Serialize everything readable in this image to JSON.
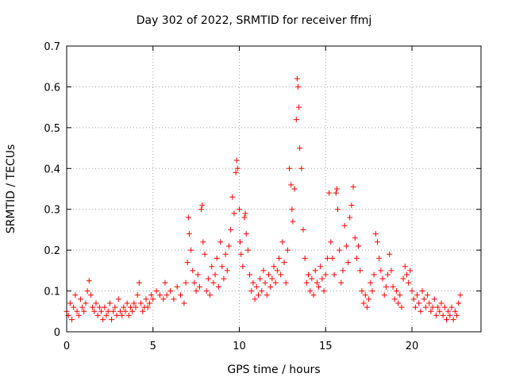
{
  "chart_data": {
    "type": "scatter",
    "title": "Day 302 of 2022, SRMTID for receiver ffmj",
    "xlabel": "GPS time / hours",
    "ylabel": "SRMTID / TECUs",
    "xlim": [
      0,
      24
    ],
    "ylim": [
      0,
      0.7
    ],
    "xticks": [
      0,
      5,
      10,
      15,
      20
    ],
    "yticks": [
      0,
      0.1,
      0.2,
      0.3,
      0.4,
      0.5,
      0.6,
      0.7
    ],
    "grid": true,
    "marker": "+",
    "color": "#ff0000",
    "series": [
      {
        "name": "SRMTID",
        "points": [
          [
            0.0,
            0.05
          ],
          [
            0.1,
            0.04
          ],
          [
            0.2,
            0.07
          ],
          [
            0.3,
            0.03
          ],
          [
            0.4,
            0.06
          ],
          [
            0.5,
            0.09
          ],
          [
            0.6,
            0.05
          ],
          [
            0.7,
            0.04
          ],
          [
            0.8,
            0.08
          ],
          [
            0.9,
            0.06
          ],
          [
            1.0,
            0.05
          ],
          [
            1.1,
            0.07
          ],
          [
            1.2,
            0.1
          ],
          [
            1.3,
            0.125
          ],
          [
            1.4,
            0.09
          ],
          [
            1.5,
            0.06
          ],
          [
            1.6,
            0.05
          ],
          [
            1.7,
            0.07
          ],
          [
            1.8,
            0.04
          ],
          [
            1.9,
            0.06
          ],
          [
            2.0,
            0.05
          ],
          [
            2.1,
            0.03
          ],
          [
            2.2,
            0.06
          ],
          [
            2.3,
            0.04
          ],
          [
            2.4,
            0.05
          ],
          [
            2.5,
            0.07
          ],
          [
            2.6,
            0.03
          ],
          [
            2.7,
            0.05
          ],
          [
            2.8,
            0.06
          ],
          [
            2.9,
            0.04
          ],
          [
            3.0,
            0.08
          ],
          [
            3.1,
            0.05
          ],
          [
            3.2,
            0.04
          ],
          [
            3.3,
            0.06
          ],
          [
            3.4,
            0.05
          ],
          [
            3.5,
            0.07
          ],
          [
            3.6,
            0.04
          ],
          [
            3.7,
            0.06
          ],
          [
            3.8,
            0.05
          ],
          [
            3.9,
            0.07
          ],
          [
            4.0,
            0.06
          ],
          [
            4.1,
            0.09
          ],
          [
            4.2,
            0.12
          ],
          [
            4.3,
            0.07
          ],
          [
            4.4,
            0.05
          ],
          [
            4.5,
            0.06
          ],
          [
            4.6,
            0.08
          ],
          [
            4.7,
            0.06
          ],
          [
            4.8,
            0.07
          ],
          [
            4.9,
            0.09
          ],
          [
            5.0,
            0.08
          ],
          [
            5.2,
            0.1
          ],
          [
            5.4,
            0.09
          ],
          [
            5.6,
            0.08
          ],
          [
            5.7,
            0.12
          ],
          [
            5.8,
            0.09
          ],
          [
            6.0,
            0.1
          ],
          [
            6.2,
            0.08
          ],
          [
            6.4,
            0.11
          ],
          [
            6.6,
            0.09
          ],
          [
            6.8,
            0.07
          ],
          [
            6.9,
            0.12
          ],
          [
            7.0,
            0.17
          ],
          [
            7.05,
            0.28
          ],
          [
            7.1,
            0.24
          ],
          [
            7.2,
            0.2
          ],
          [
            7.3,
            0.15
          ],
          [
            7.4,
            0.12
          ],
          [
            7.5,
            0.1
          ],
          [
            7.6,
            0.14
          ],
          [
            7.7,
            0.11
          ],
          [
            7.8,
            0.3
          ],
          [
            7.85,
            0.31
          ],
          [
            7.9,
            0.22
          ],
          [
            8.0,
            0.19
          ],
          [
            8.1,
            0.1
          ],
          [
            8.2,
            0.13
          ],
          [
            8.3,
            0.09
          ],
          [
            8.4,
            0.16
          ],
          [
            8.5,
            0.12
          ],
          [
            8.6,
            0.14
          ],
          [
            8.7,
            0.18
          ],
          [
            8.8,
            0.11
          ],
          [
            8.9,
            0.22
          ],
          [
            9.0,
            0.16
          ],
          [
            9.1,
            0.13
          ],
          [
            9.2,
            0.19
          ],
          [
            9.3,
            0.15
          ],
          [
            9.4,
            0.21
          ],
          [
            9.5,
            0.25
          ],
          [
            9.6,
            0.33
          ],
          [
            9.7,
            0.29
          ],
          [
            9.8,
            0.39
          ],
          [
            9.85,
            0.42
          ],
          [
            9.9,
            0.4
          ],
          [
            10.0,
            0.3
          ],
          [
            10.05,
            0.22
          ],
          [
            10.1,
            0.19
          ],
          [
            10.2,
            0.16
          ],
          [
            10.3,
            0.28
          ],
          [
            10.35,
            0.29
          ],
          [
            10.4,
            0.24
          ],
          [
            10.5,
            0.2
          ],
          [
            10.6,
            0.14
          ],
          [
            10.7,
            0.1
          ],
          [
            10.8,
            0.12
          ],
          [
            10.9,
            0.08
          ],
          [
            11.0,
            0.11
          ],
          [
            11.1,
            0.09
          ],
          [
            11.2,
            0.13
          ],
          [
            11.3,
            0.1
          ],
          [
            11.4,
            0.15
          ],
          [
            11.5,
            0.12
          ],
          [
            11.6,
            0.09
          ],
          [
            11.7,
            0.14
          ],
          [
            11.8,
            0.11
          ],
          [
            11.9,
            0.13
          ],
          [
            12.0,
            0.16
          ],
          [
            12.1,
            0.12
          ],
          [
            12.2,
            0.15
          ],
          [
            12.3,
            0.18
          ],
          [
            12.4,
            0.14
          ],
          [
            12.5,
            0.22
          ],
          [
            12.6,
            0.17
          ],
          [
            12.7,
            0.12
          ],
          [
            12.8,
            0.2
          ],
          [
            12.9,
            0.4
          ],
          [
            13.0,
            0.36
          ],
          [
            13.05,
            0.3
          ],
          [
            13.1,
            0.27
          ],
          [
            13.2,
            0.35
          ],
          [
            13.3,
            0.52
          ],
          [
            13.35,
            0.62
          ],
          [
            13.4,
            0.6
          ],
          [
            13.45,
            0.55
          ],
          [
            13.5,
            0.45
          ],
          [
            13.6,
            0.4
          ],
          [
            13.7,
            0.25
          ],
          [
            13.8,
            0.18
          ],
          [
            13.9,
            0.12
          ],
          [
            14.0,
            0.14
          ],
          [
            14.1,
            0.1
          ],
          [
            14.2,
            0.13
          ],
          [
            14.3,
            0.09
          ],
          [
            14.4,
            0.15
          ],
          [
            14.5,
            0.12
          ],
          [
            14.6,
            0.11
          ],
          [
            14.7,
            0.16
          ],
          [
            14.8,
            0.13
          ],
          [
            14.9,
            0.1
          ],
          [
            15.0,
            0.14
          ],
          [
            15.1,
            0.18
          ],
          [
            15.2,
            0.34
          ],
          [
            15.3,
            0.22
          ],
          [
            15.4,
            0.18
          ],
          [
            15.5,
            0.14
          ],
          [
            15.6,
            0.34
          ],
          [
            15.65,
            0.35
          ],
          [
            15.7,
            0.3
          ],
          [
            15.8,
            0.2
          ],
          [
            15.9,
            0.12
          ],
          [
            16.0,
            0.15
          ],
          [
            16.1,
            0.26
          ],
          [
            16.2,
            0.21
          ],
          [
            16.3,
            0.17
          ],
          [
            16.4,
            0.28
          ],
          [
            16.5,
            0.31
          ],
          [
            16.6,
            0.355
          ],
          [
            16.7,
            0.23
          ],
          [
            16.8,
            0.18
          ],
          [
            16.9,
            0.21
          ],
          [
            17.0,
            0.15
          ],
          [
            17.1,
            0.1
          ],
          [
            17.2,
            0.07
          ],
          [
            17.3,
            0.09
          ],
          [
            17.4,
            0.06
          ],
          [
            17.5,
            0.08
          ],
          [
            17.6,
            0.12
          ],
          [
            17.7,
            0.1
          ],
          [
            17.8,
            0.14
          ],
          [
            17.9,
            0.24
          ],
          [
            18.0,
            0.22
          ],
          [
            18.1,
            0.18
          ],
          [
            18.2,
            0.15
          ],
          [
            18.3,
            0.13
          ],
          [
            18.4,
            0.09
          ],
          [
            18.5,
            0.11
          ],
          [
            18.6,
            0.14
          ],
          [
            18.7,
            0.19
          ],
          [
            18.8,
            0.15
          ],
          [
            18.9,
            0.11
          ],
          [
            19.0,
            0.08
          ],
          [
            19.1,
            0.1
          ],
          [
            19.2,
            0.07
          ],
          [
            19.3,
            0.09
          ],
          [
            19.4,
            0.06
          ],
          [
            19.5,
            0.13
          ],
          [
            19.6,
            0.16
          ],
          [
            19.7,
            0.14
          ],
          [
            19.8,
            0.12
          ],
          [
            19.9,
            0.15
          ],
          [
            20.0,
            0.1
          ],
          [
            20.1,
            0.08
          ],
          [
            20.2,
            0.06
          ],
          [
            20.3,
            0.09
          ],
          [
            20.4,
            0.07
          ],
          [
            20.5,
            0.05
          ],
          [
            20.6,
            0.1
          ],
          [
            20.7,
            0.08
          ],
          [
            20.8,
            0.06
          ],
          [
            20.9,
            0.09
          ],
          [
            21.0,
            0.07
          ],
          [
            21.1,
            0.05
          ],
          [
            21.2,
            0.06
          ],
          [
            21.3,
            0.08
          ],
          [
            21.4,
            0.04
          ],
          [
            21.5,
            0.06
          ],
          [
            21.6,
            0.05
          ],
          [
            21.7,
            0.07
          ],
          [
            21.8,
            0.04
          ],
          [
            21.9,
            0.06
          ],
          [
            22.0,
            0.03
          ],
          [
            22.1,
            0.05
          ],
          [
            22.2,
            0.04
          ],
          [
            22.3,
            0.06
          ],
          [
            22.4,
            0.03
          ],
          [
            22.5,
            0.05
          ],
          [
            22.6,
            0.04
          ],
          [
            22.7,
            0.07
          ],
          [
            22.8,
            0.09
          ]
        ]
      }
    ]
  }
}
